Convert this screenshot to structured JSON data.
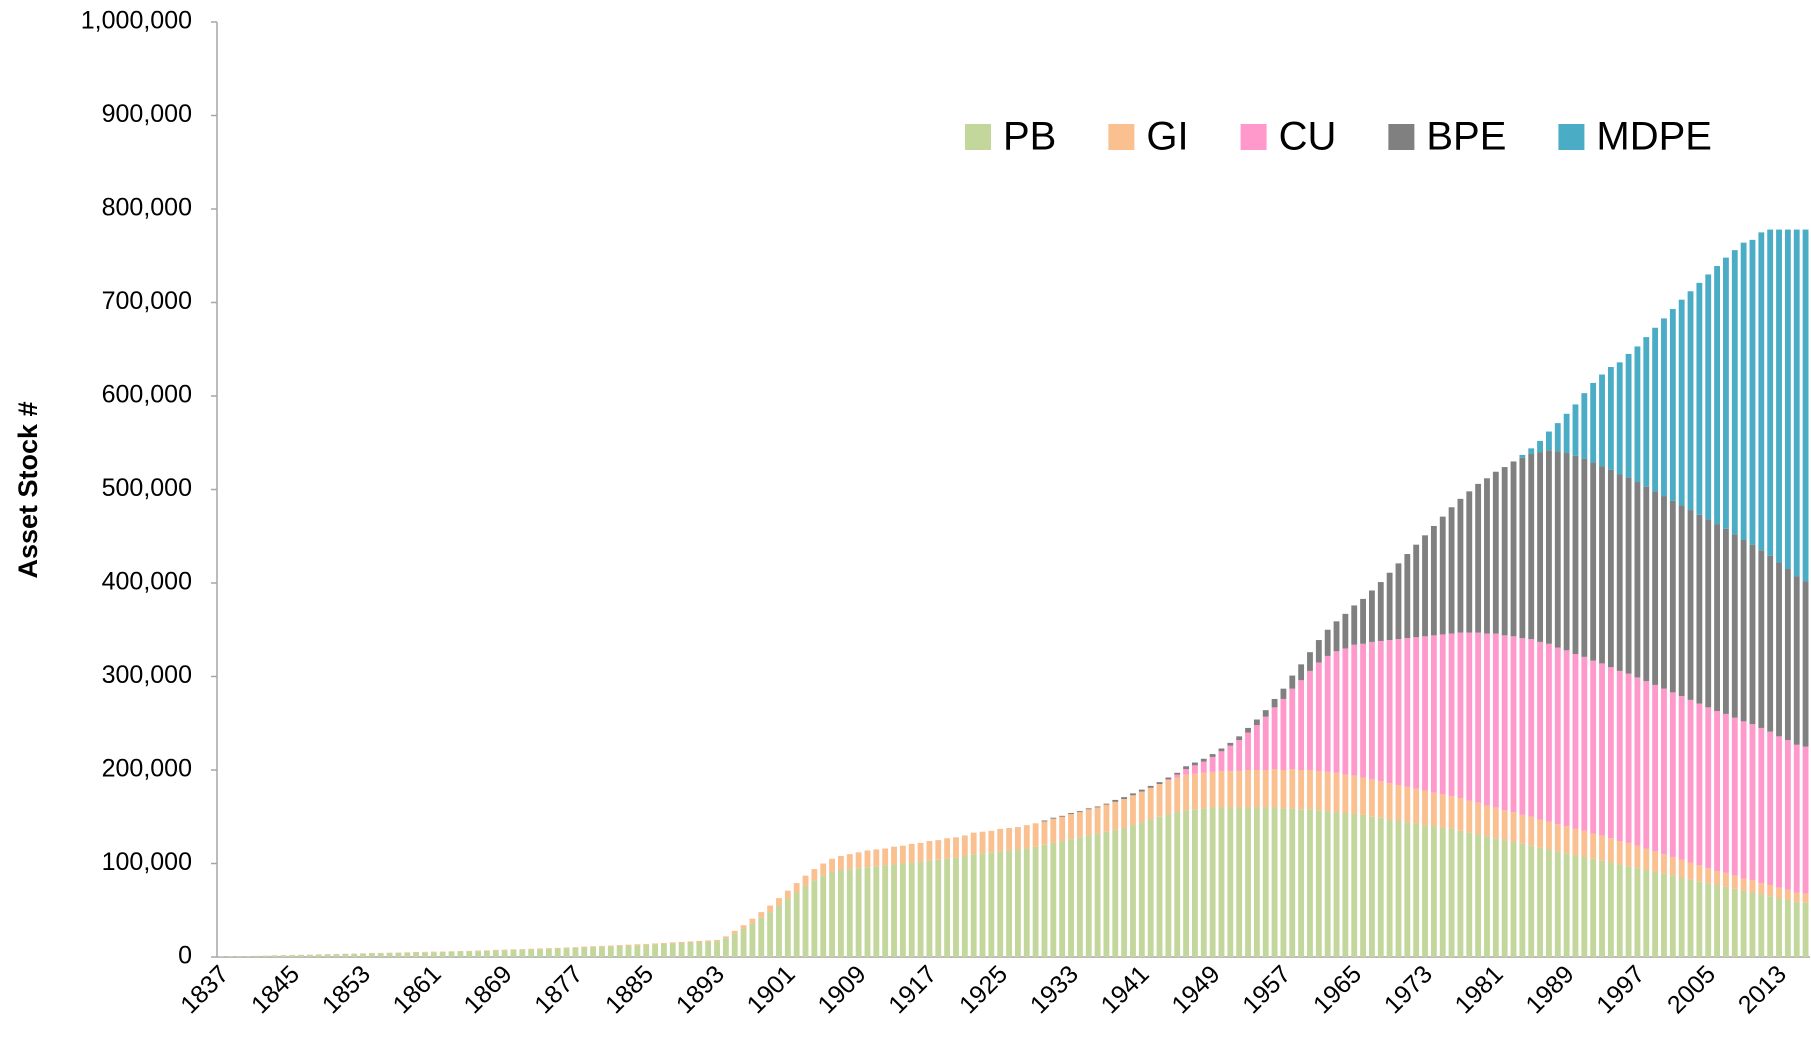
{
  "chart_data": {
    "type": "stacked_bar",
    "y_label": "Asset Stock #",
    "ylim": [
      0,
      1000000
    ],
    "yticks": [
      0,
      {
        "value": 100000,
        "label": "100,000"
      },
      {
        "value": 200000,
        "label": "200,000"
      },
      {
        "value": 300000,
        "label": "300,000"
      },
      {
        "value": 400000,
        "label": "400,000"
      },
      {
        "value": 500000,
        "label": "500,000"
      },
      {
        "value": 600000,
        "label": "600,000"
      },
      {
        "value": 700000,
        "label": "700,000"
      },
      {
        "value": 800000,
        "label": "800,000"
      },
      {
        "value": 900000,
        "label": "900,000"
      },
      {
        "value": 1000000,
        "label": "1,000,000"
      }
    ],
    "grid": false,
    "legend": "top-right",
    "categories": [
      "1837",
      null,
      null,
      null,
      null,
      null,
      null,
      null,
      "1845",
      null,
      null,
      null,
      null,
      null,
      null,
      null,
      "1853",
      null,
      null,
      null,
      null,
      null,
      null,
      null,
      "1861",
      null,
      null,
      null,
      null,
      null,
      null,
      null,
      "1869",
      null,
      null,
      null,
      null,
      null,
      null,
      null,
      "1877",
      null,
      null,
      null,
      null,
      null,
      null,
      null,
      "1885",
      null,
      null,
      null,
      null,
      null,
      null,
      null,
      "1893",
      null,
      null,
      null,
      null,
      null,
      null,
      null,
      "1901",
      null,
      null,
      null,
      null,
      null,
      null,
      null,
      "1909",
      null,
      null,
      null,
      null,
      null,
      null,
      null,
      "1917",
      null,
      null,
      null,
      null,
      null,
      null,
      null,
      "1925",
      null,
      null,
      null,
      null,
      null,
      null,
      null,
      "1933",
      null,
      null,
      null,
      null,
      null,
      null,
      null,
      "1941",
      null,
      null,
      null,
      null,
      null,
      null,
      null,
      "1949",
      null,
      null,
      null,
      null,
      null,
      null,
      null,
      "1957",
      null,
      null,
      null,
      null,
      null,
      null,
      null,
      "1965",
      null,
      null,
      null,
      null,
      null,
      null,
      null,
      "1973",
      null,
      null,
      null,
      null,
      null,
      null,
      null,
      "1981",
      null,
      null,
      null,
      null,
      null,
      null,
      null,
      "1989",
      null,
      null,
      null,
      null,
      null,
      null,
      null,
      "1997",
      null,
      null,
      null,
      null,
      null,
      null,
      null,
      "2005",
      null,
      null,
      null,
      null,
      null,
      null,
      null,
      "2013",
      null,
      null,
      null
    ],
    "series": [
      {
        "name": "PB",
        "color": "#c3d69b",
        "values": [
          500,
          600,
          800,
          1000,
          1200,
          1400,
          1600,
          1800,
          2000,
          2200,
          2400,
          2600,
          2800,
          3000,
          3200,
          3400,
          3600,
          3800,
          4000,
          4200,
          4400,
          4600,
          4800,
          5000,
          5200,
          5400,
          5600,
          5800,
          6000,
          6300,
          6600,
          6900,
          7200,
          7500,
          7800,
          8100,
          8400,
          8700,
          9000,
          9400,
          9800,
          10200,
          10600,
          11000,
          11400,
          11800,
          12200,
          12600,
          13000,
          13500,
          14000,
          14500,
          15000,
          15500,
          16000,
          16500,
          17000,
          20000,
          25000,
          30000,
          36000,
          42000,
          48000,
          55000,
          62000,
          69000,
          76000,
          82000,
          87000,
          91000,
          93000,
          94000,
          95000,
          96000,
          97000,
          98000,
          99000,
          100000,
          101000,
          102000,
          103000,
          104000,
          105000,
          106000,
          108000,
          110000,
          111000,
          112000,
          113000,
          114000,
          115000,
          116000,
          118000,
          120000,
          122000,
          124000,
          126000,
          128000,
          130000,
          132000,
          134000,
          136000,
          138000,
          141000,
          144000,
          147000,
          150000,
          153000,
          155000,
          157000,
          158000,
          159000,
          160000,
          160000,
          160000,
          160000,
          160000,
          160000,
          160000,
          160000,
          159000,
          159000,
          158000,
          158000,
          157000,
          156000,
          155000,
          154000,
          153000,
          152000,
          150000,
          149000,
          147000,
          146000,
          144000,
          143000,
          141000,
          140000,
          138000,
          137000,
          135000,
          133000,
          131000,
          129000,
          127000,
          125000,
          123000,
          121000,
          119000,
          117000,
          115000,
          113000,
          111000,
          109000,
          107000,
          105000,
          103000,
          101000,
          99000,
          97000,
          95000,
          93000,
          91000,
          89000,
          87000,
          85000,
          83000,
          81000,
          79000,
          77000,
          75000,
          73000,
          71000,
          69000,
          67000,
          65000,
          63000,
          61000,
          59000,
          58000
        ]
      },
      {
        "name": "GI",
        "color": "#fac090",
        "values": [
          100,
          100,
          100,
          100,
          100,
          100,
          200,
          200,
          200,
          200,
          200,
          300,
          300,
          300,
          300,
          300,
          400,
          400,
          400,
          400,
          400,
          500,
          500,
          500,
          500,
          500,
          600,
          600,
          600,
          600,
          600,
          700,
          700,
          700,
          700,
          700,
          800,
          800,
          800,
          800,
          800,
          900,
          900,
          900,
          900,
          900,
          1000,
          1000,
          1000,
          1000,
          1000,
          1100,
          1100,
          1100,
          1200,
          1200,
          1300,
          2000,
          3000,
          4000,
          5000,
          6000,
          7000,
          8000,
          9000,
          10000,
          11000,
          12000,
          13000,
          14000,
          15000,
          16000,
          17000,
          18000,
          18000,
          18000,
          19000,
          19000,
          20000,
          20000,
          21000,
          21000,
          22000,
          22000,
          22000,
          23000,
          23000,
          23000,
          24000,
          24000,
          24000,
          25000,
          25000,
          25000,
          26000,
          26000,
          27000,
          27000,
          28000,
          28000,
          29000,
          30000,
          31000,
          32000,
          33000,
          34000,
          35000,
          36000,
          37000,
          38000,
          38000,
          38000,
          38000,
          39000,
          39000,
          39000,
          40000,
          40000,
          40000,
          41000,
          41000,
          42000,
          42000,
          42000,
          42000,
          42000,
          42000,
          41000,
          41000,
          40000,
          40000,
          39000,
          39000,
          38000,
          38000,
          37000,
          37000,
          36000,
          36000,
          35000,
          35000,
          34000,
          34000,
          33000,
          33000,
          32000,
          32000,
          31000,
          31000,
          30000,
          30000,
          29000,
          29000,
          28000,
          28000,
          27000,
          27000,
          26000,
          25000,
          25000,
          24000,
          23000,
          22000,
          21000,
          20000,
          19000,
          18000,
          17000,
          16000,
          15000,
          15000,
          14000,
          13000,
          13000,
          12000,
          12000,
          11000,
          11000,
          10000,
          10000
        ]
      },
      {
        "name": "CU",
        "color": "#ff99cc",
        "values": [
          0,
          0,
          0,
          0,
          0,
          0,
          0,
          0,
          0,
          0,
          0,
          0,
          0,
          0,
          0,
          0,
          0,
          0,
          0,
          0,
          0,
          0,
          0,
          0,
          0,
          0,
          0,
          0,
          0,
          0,
          0,
          0,
          0,
          0,
          0,
          0,
          0,
          0,
          0,
          0,
          0,
          0,
          0,
          0,
          0,
          0,
          0,
          0,
          0,
          0,
          0,
          0,
          0,
          0,
          0,
          0,
          0,
          0,
          0,
          0,
          0,
          0,
          0,
          0,
          0,
          0,
          0,
          0,
          0,
          0,
          0,
          0,
          0,
          0,
          0,
          0,
          0,
          0,
          0,
          0,
          0,
          0,
          0,
          0,
          0,
          0,
          0,
          0,
          0,
          0,
          0,
          0,
          0,
          0,
          0,
          0,
          0,
          0,
          0,
          0,
          0,
          0,
          0,
          0,
          0,
          0,
          0,
          1000,
          3000,
          6000,
          9000,
          12000,
          16000,
          21000,
          27000,
          33000,
          40000,
          48000,
          57000,
          66000,
          76000,
          86000,
          96000,
          106000,
          116000,
          124000,
          130000,
          135000,
          140000,
          143000,
          147000,
          150000,
          153000,
          156000,
          159000,
          162000,
          165000,
          168000,
          171000,
          174000,
          177000,
          180000,
          182000,
          184000,
          186000,
          187000,
          188000,
          189000,
          190000,
          190000,
          190000,
          189000,
          188000,
          187000,
          186000,
          185000,
          184000,
          183000,
          182000,
          181000,
          180000,
          179000,
          178000,
          177000,
          176000,
          175000,
          174000,
          173000,
          172000,
          171000,
          170000,
          169000,
          168000,
          167000,
          166000,
          164000,
          162000,
          160000,
          158000,
          157000
        ]
      },
      {
        "name": "BPE",
        "color": "#808080",
        "values": [
          0,
          0,
          0,
          0,
          0,
          0,
          0,
          0,
          0,
          0,
          0,
          0,
          0,
          0,
          0,
          0,
          0,
          0,
          0,
          0,
          0,
          0,
          0,
          0,
          0,
          0,
          0,
          0,
          0,
          0,
          0,
          0,
          0,
          0,
          0,
          0,
          0,
          0,
          0,
          0,
          0,
          0,
          0,
          0,
          0,
          0,
          0,
          0,
          0,
          0,
          0,
          0,
          0,
          0,
          0,
          0,
          0,
          0,
          0,
          0,
          0,
          0,
          0,
          0,
          0,
          0,
          0,
          0,
          0,
          0,
          0,
          0,
          0,
          0,
          0,
          0,
          0,
          0,
          0,
          0,
          0,
          0,
          0,
          0,
          0,
          0,
          0,
          0,
          0,
          0,
          0,
          0,
          0,
          1000,
          1000,
          1000,
          1000,
          1000,
          1000,
          1000,
          1000,
          2000,
          2000,
          2000,
          2000,
          2000,
          2000,
          2000,
          2000,
          3000,
          3000,
          3000,
          3000,
          3000,
          3000,
          4000,
          5000,
          6000,
          7000,
          9000,
          11000,
          14000,
          17000,
          20000,
          24000,
          28000,
          32000,
          37000,
          42000,
          48000,
          55000,
          63000,
          72000,
          81000,
          90000,
          99000,
          108000,
          117000,
          126000,
          135000,
          143000,
          151000,
          159000,
          166000,
          173000,
          180000,
          187000,
          193000,
          198000,
          203000,
          207000,
          210000,
          211000,
          212000,
          212000,
          212000,
          211000,
          211000,
          210000,
          210000,
          209000,
          208000,
          207000,
          206000,
          205000,
          204000,
          203000,
          202000,
          201000,
          200000,
          198000,
          196000,
          194000,
          192000,
          190000,
          188000,
          186000,
          183000,
          180000,
          177000
        ]
      },
      {
        "name": "MDPE",
        "color": "#4bacc6",
        "values": [
          0,
          0,
          0,
          0,
          0,
          0,
          0,
          0,
          0,
          0,
          0,
          0,
          0,
          0,
          0,
          0,
          0,
          0,
          0,
          0,
          0,
          0,
          0,
          0,
          0,
          0,
          0,
          0,
          0,
          0,
          0,
          0,
          0,
          0,
          0,
          0,
          0,
          0,
          0,
          0,
          0,
          0,
          0,
          0,
          0,
          0,
          0,
          0,
          0,
          0,
          0,
          0,
          0,
          0,
          0,
          0,
          0,
          0,
          0,
          0,
          0,
          0,
          0,
          0,
          0,
          0,
          0,
          0,
          0,
          0,
          0,
          0,
          0,
          0,
          0,
          0,
          0,
          0,
          0,
          0,
          0,
          0,
          0,
          0,
          0,
          0,
          0,
          0,
          0,
          0,
          0,
          0,
          0,
          0,
          0,
          0,
          0,
          0,
          0,
          0,
          0,
          0,
          0,
          0,
          0,
          0,
          0,
          0,
          0,
          0,
          0,
          0,
          0,
          0,
          0,
          0,
          0,
          0,
          0,
          0,
          0,
          0,
          0,
          0,
          0,
          0,
          0,
          0,
          0,
          0,
          0,
          0,
          0,
          0,
          0,
          0,
          0,
          0,
          0,
          0,
          0,
          0,
          0,
          0,
          0,
          0,
          0,
          3000,
          6000,
          12000,
          20000,
          30000,
          42000,
          55000,
          70000,
          85000,
          98000,
          110000,
          120000,
          132000,
          145000,
          160000,
          175000,
          190000,
          205000,
          220000,
          234000,
          248000,
          262000,
          276000,
          290000,
          304000,
          318000,
          326000,
          340000,
          349000,
          356000,
          363000,
          371000,
          376000
        ]
      }
    ]
  }
}
